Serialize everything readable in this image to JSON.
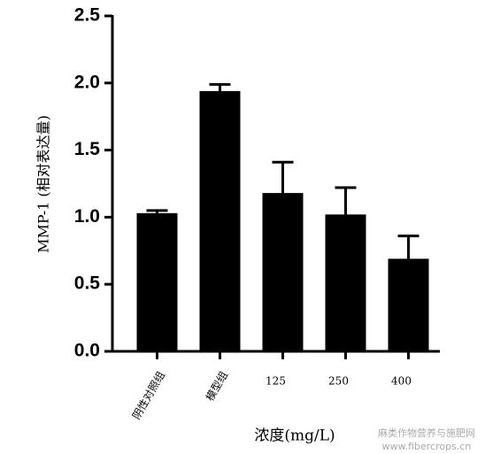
{
  "chart_data": {
    "type": "bar",
    "y_label": "MMP-1 (相对表达量)",
    "x_label": "浓度(mg/L)",
    "categories": [
      "阴性对照组",
      "模型组",
      "125",
      "250",
      "400"
    ],
    "values": [
      1.03,
      1.94,
      1.18,
      1.02,
      0.69
    ],
    "errors": [
      0.02,
      0.05,
      0.23,
      0.2,
      0.17
    ],
    "color": "#000000",
    "ylim": [
      0,
      2.5
    ],
    "yticks": [
      {
        "value": 0,
        "label": "0.0"
      },
      {
        "value": 0.5,
        "label": "0.5"
      },
      {
        "value": 1,
        "label": "1.0"
      },
      {
        "value": 1.5,
        "label": "1.5"
      },
      {
        "value": 2,
        "label": "2.0"
      },
      {
        "value": 2.5,
        "label": "2.5"
      }
    ],
    "watermark": [
      "麻类作物营养与施肥网",
      "www.fibercrops.cn"
    ]
  }
}
